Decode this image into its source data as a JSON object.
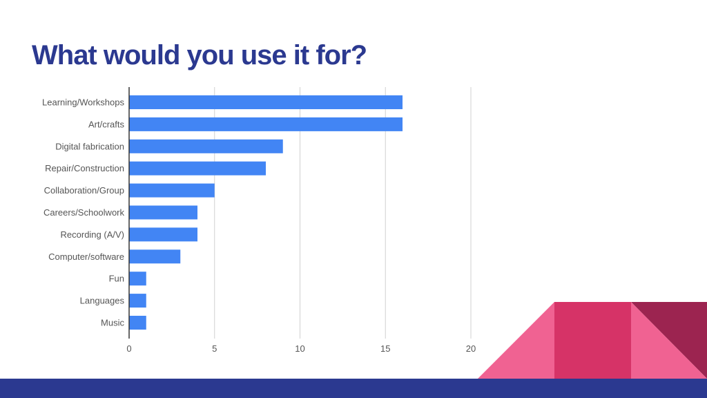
{
  "slide": {
    "title": "What would you use it for?"
  },
  "colors": {
    "title": "#2b3990",
    "bar": "#4285f4",
    "footer_band": "#2b3990",
    "decor_pink": "#f06292",
    "decor_magenta": "#d63367",
    "decor_maroon": "#9c2450"
  },
  "chart_data": {
    "type": "bar",
    "orientation": "horizontal",
    "categories": [
      "Learning/Workshops",
      "Art/crafts",
      "Digital fabrication",
      "Repair/Construction",
      "Collaboration/Group",
      "Careers/Schoolwork",
      "Recording (A/V)",
      "Computer/software",
      "Fun",
      "Languages",
      "Music"
    ],
    "values": [
      16,
      16,
      9,
      8,
      5,
      4,
      4,
      3,
      1,
      1,
      1
    ],
    "xlim": [
      0,
      20
    ],
    "xticks": [
      "0",
      "5",
      "10",
      "15",
      "20"
    ],
    "grid": true,
    "legend": false
  }
}
